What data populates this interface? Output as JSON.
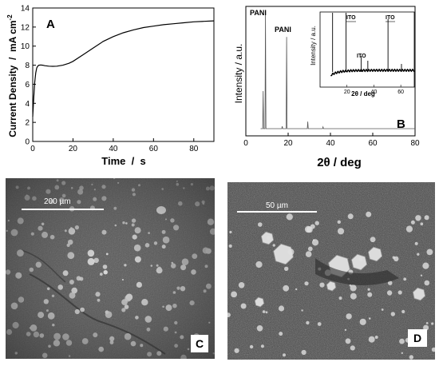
{
  "chart_data": [
    {
      "panel": "A",
      "type": "line",
      "xlabel": "Time  /  s",
      "ylabel": "Current Density  /  mA cm",
      "ylabel_sup": "-2",
      "xlim": [
        0,
        90
      ],
      "ylim": [
        0,
        14
      ],
      "xticks": [
        0,
        20,
        40,
        60,
        80
      ],
      "yticks": [
        0,
        2,
        4,
        6,
        8,
        10,
        12,
        14
      ],
      "series": [
        {
          "x": [
            0,
            0.5,
            1,
            1.5,
            2,
            2.5,
            3,
            4,
            5,
            6,
            8,
            10,
            12,
            15,
            18,
            20,
            25,
            30,
            35,
            40,
            45,
            50,
            55,
            60,
            65,
            70,
            75,
            80,
            85,
            90
          ],
          "y": [
            2.6,
            4.6,
            6.2,
            7.2,
            7.7,
            7.9,
            8.0,
            8.02,
            8.0,
            7.95,
            7.9,
            7.88,
            7.9,
            8.0,
            8.2,
            8.4,
            9.1,
            9.8,
            10.5,
            11.0,
            11.4,
            11.7,
            11.95,
            12.1,
            12.25,
            12.35,
            12.45,
            12.55,
            12.6,
            12.65
          ]
        }
      ]
    },
    {
      "panel": "B",
      "type": "line",
      "xlabel": "2θ / deg",
      "ylabel": "Intensity / a.u.",
      "xlim": [
        0,
        80
      ],
      "xticks": [
        0,
        20,
        40,
        60,
        80
      ],
      "annotations": [
        "PANI",
        "PANI"
      ],
      "peaks": [
        {
          "x": 8.2,
          "height": 0.32
        },
        {
          "x": 9.3,
          "height": 1.0
        },
        {
          "x": 17.2,
          "height": 0.02
        },
        {
          "x": 19.3,
          "height": 0.78
        },
        {
          "x": 29.3,
          "height": 0.06
        },
        {
          "x": 36.5,
          "height": 0.015
        }
      ],
      "inset": {
        "xlabel": "2θ / deg",
        "ylabel": "Intensity / a.u.",
        "xlim": [
          0,
          70
        ],
        "xticks": [
          20,
          40,
          60
        ],
        "annotations": [
          "ITO",
          "ITO",
          "ITO"
        ]
      }
    }
  ],
  "panels": {
    "C": {
      "label": "C",
      "scale_text": "200 µm"
    },
    "D": {
      "label": "D",
      "scale_text": "50 µm"
    }
  }
}
